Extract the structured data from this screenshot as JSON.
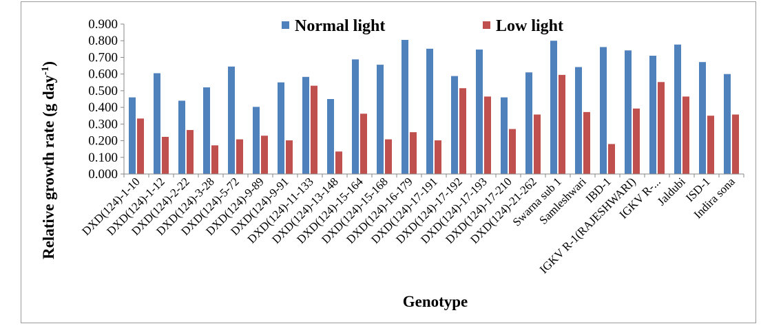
{
  "chart_data": {
    "type": "bar",
    "xlabel": "Genotype",
    "ylabel": "Relative growth rate (g day",
    "ylabel_sup": "-1",
    "ylabel_close": ")",
    "ylim": [
      0,
      0.9
    ],
    "ytick_step": 0.1,
    "ytick_labels": [
      "0.000",
      "0.100",
      "0.200",
      "0.300",
      "0.400",
      "0.500",
      "0.600",
      "0.700",
      "0.800",
      "0.900"
    ],
    "grid": false,
    "legend_position": "top",
    "categories": [
      "DXD(124)-1-10",
      "DXD(124)-1-12",
      "DXD(124)-2-22",
      "DXD(124)-3-28",
      "DXD(124)-5-72",
      "DXD(124)-9-89",
      "DXD(124)-9-91",
      "DXD(124)-11-133",
      "DXD(124)-13-148",
      "DXD(124)-15-164",
      "DXD(124)-15-168",
      "DXD(124)-16-179",
      "DXD(124)-17-191",
      "DXD(124)-17-192",
      "DXD(124)-17-193",
      "DXD(124)-17-210",
      "DXD(124)-21-262",
      "Swarna sub 1",
      "Samleshwari",
      "IBD-1",
      "IGKV R-1(RAJESHWARI)",
      "IGKV R-...",
      "Jaldubi",
      "ISD-1",
      "Indira sona"
    ],
    "series": [
      {
        "name": "Normal light",
        "color": "#4F81BD",
        "values": [
          0.46,
          0.605,
          0.44,
          0.52,
          0.645,
          0.403,
          0.55,
          0.583,
          0.45,
          0.688,
          0.656,
          0.805,
          0.752,
          0.588,
          0.747,
          0.46,
          0.61,
          0.8,
          0.642,
          0.762,
          0.742,
          0.71,
          0.777,
          0.672,
          0.6
        ]
      },
      {
        "name": "Low light",
        "color": "#C0504D",
        "values": [
          0.333,
          0.223,
          0.264,
          0.172,
          0.208,
          0.23,
          0.202,
          0.53,
          0.135,
          0.362,
          0.208,
          0.251,
          0.202,
          0.515,
          0.465,
          0.27,
          0.357,
          0.595,
          0.372,
          0.18,
          0.393,
          0.552,
          0.465,
          0.35,
          0.357
        ]
      }
    ]
  }
}
